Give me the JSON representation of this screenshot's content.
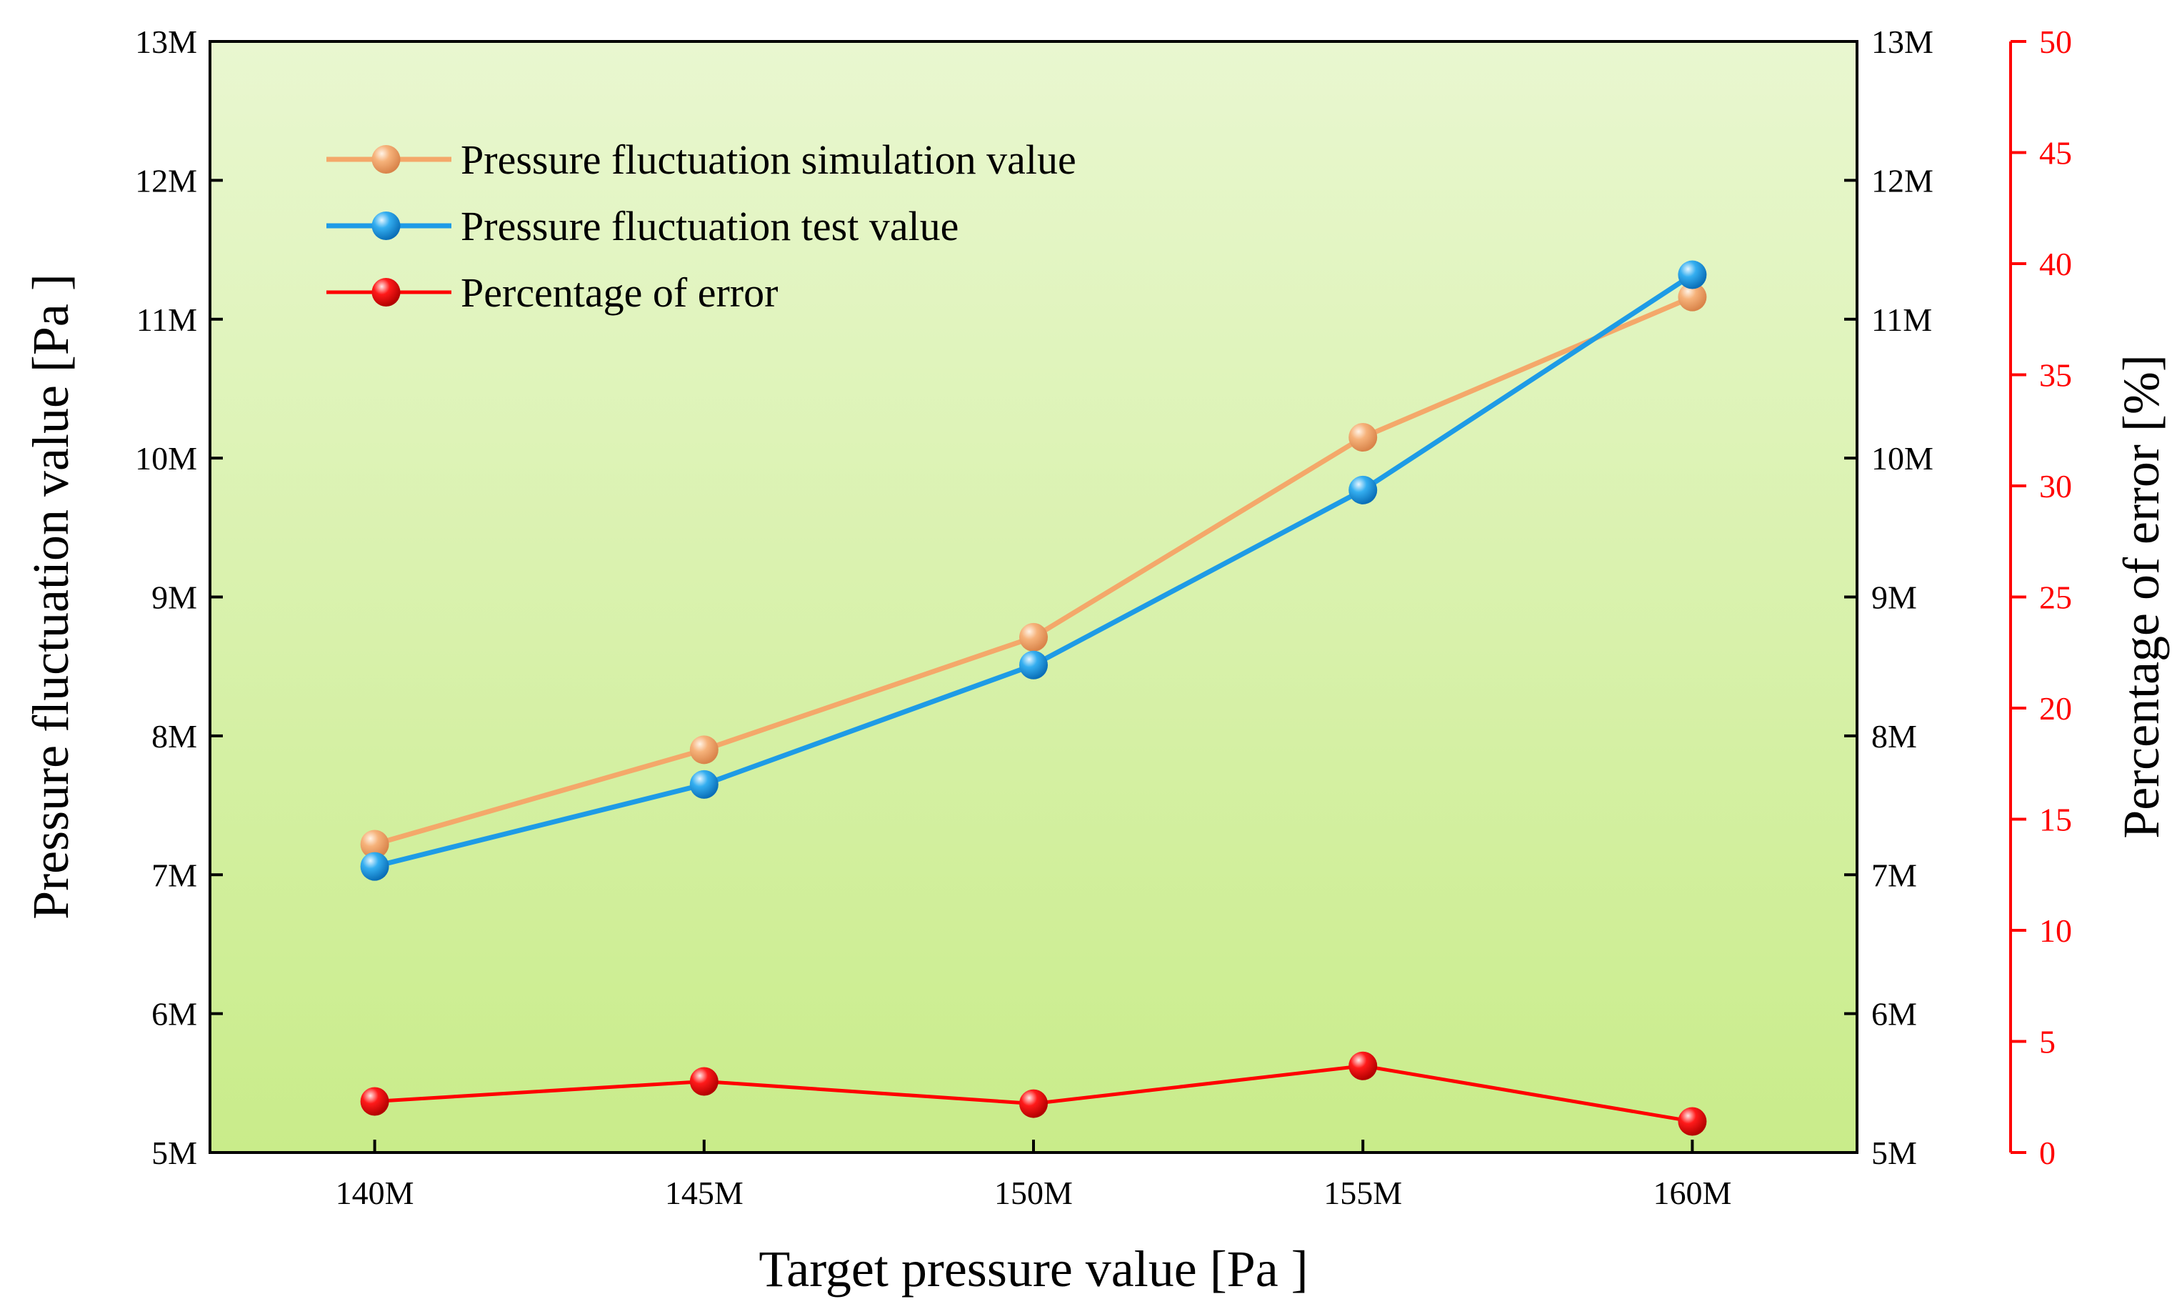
{
  "chart_data": {
    "type": "line",
    "x": [
      "140M",
      "145M",
      "150M",
      "155M",
      "160M"
    ],
    "x_values": [
      140,
      145,
      150,
      155,
      160
    ],
    "xlim": [
      137.5,
      162.5
    ],
    "xlabel": "Target pressure value [Pa ]",
    "ylabel_left": "Pressure fluctuation value [Pa ]",
    "ylabel_right": "Percentage of error [%]",
    "ylim_left": [
      5,
      13
    ],
    "yticks_left": [
      "5M",
      "6M",
      "7M",
      "8M",
      "9M",
      "10M",
      "11M",
      "12M",
      "13M"
    ],
    "ylim_right": [
      0,
      50
    ],
    "yticks_right": [
      "0",
      "5",
      "10",
      "15",
      "20",
      "25",
      "30",
      "35",
      "40",
      "45",
      "50"
    ],
    "series": [
      {
        "name": "Pressure fluctuation simulation value",
        "axis": "left",
        "color": "#F4A86A",
        "values": [
          7.22,
          7.9,
          8.71,
          10.15,
          11.16
        ]
      },
      {
        "name": "Pressure fluctuation test value",
        "axis": "left",
        "color": "#1E9BE6",
        "values": [
          7.06,
          7.65,
          8.51,
          9.77,
          11.32
        ]
      },
      {
        "name": "Percentage of error",
        "axis": "right",
        "color": "#FF0000",
        "values": [
          2.3,
          3.2,
          2.2,
          3.9,
          1.4
        ]
      }
    ],
    "legend_position": "top-left",
    "background_gradient": [
      "#E9F7D0",
      "#C9EC8A"
    ],
    "right_axis_color": "#FF0000"
  }
}
